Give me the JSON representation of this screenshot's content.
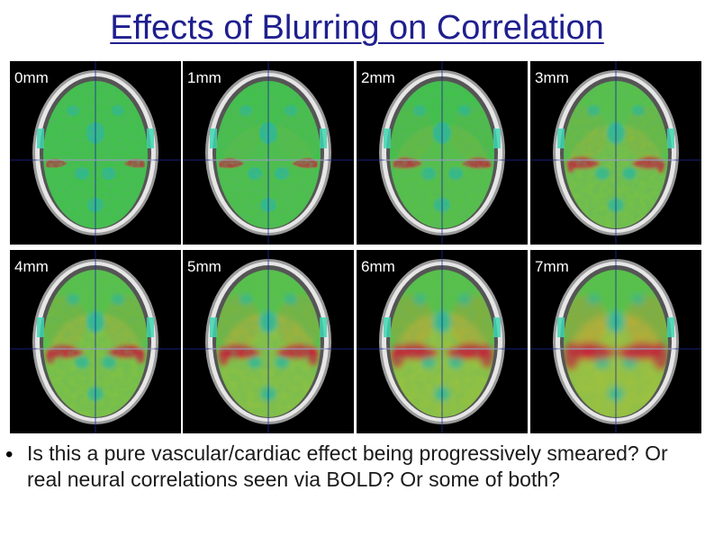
{
  "title": "Effects of Blurring on Correlation",
  "panels": [
    {
      "label": "0mm",
      "blur_mm": 0
    },
    {
      "label": "1mm",
      "blur_mm": 1
    },
    {
      "label": "2mm",
      "blur_mm": 2
    },
    {
      "label": "3mm",
      "blur_mm": 3
    },
    {
      "label": "4mm",
      "blur_mm": 4
    },
    {
      "label": "5mm",
      "blur_mm": 5
    },
    {
      "label": "6mm",
      "blur_mm": 6
    },
    {
      "label": "7mm",
      "blur_mm": 7
    }
  ],
  "bullet": {
    "symbol": "•",
    "text": "Is this a pure vascular/cardiac effect being progressively smeared? Or real neural correlations seen via BOLD? Or some of both?"
  },
  "colors": {
    "title": "#1f1f8f",
    "background": "#000000",
    "skull": "#e6e6e6",
    "green": "#3fc24a",
    "cyan": "#28b8a0",
    "red": "#c8203a",
    "crosshair": "#1c2a9a"
  }
}
